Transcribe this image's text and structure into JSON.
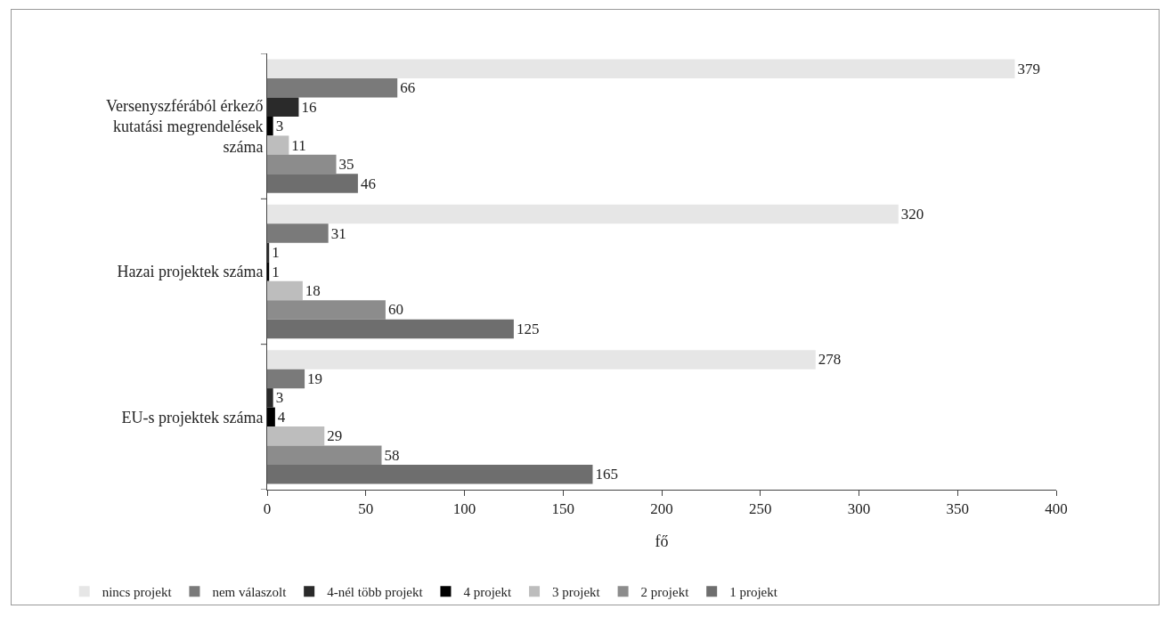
{
  "chart_data": {
    "type": "bar",
    "orientation": "horizontal",
    "xlabel": "fő",
    "categories": [
      "Versenyszférából érkező kutatási megrendelések száma",
      "Hazai projektek száma",
      "EU-s projektek száma"
    ],
    "series": [
      {
        "name": "nincs projekt",
        "color": "#e6e6e6",
        "values": [
          379,
          320,
          278
        ]
      },
      {
        "name": "nem válaszolt",
        "color": "#7a7a7a",
        "values": [
          66,
          31,
          19
        ]
      },
      {
        "name": "4-nél több projekt",
        "color": "#2a2a2a",
        "values": [
          16,
          1,
          3
        ]
      },
      {
        "name": "4 projekt",
        "color": "#000000",
        "values": [
          3,
          1,
          4
        ]
      },
      {
        "name": "3 projekt",
        "color": "#bdbdbd",
        "values": [
          11,
          18,
          29
        ]
      },
      {
        "name": "2 projekt",
        "color": "#8c8c8c",
        "values": [
          35,
          60,
          58
        ]
      },
      {
        "name": "1 projekt",
        "color": "#6e6e6e",
        "values": [
          46,
          125,
          165
        ]
      }
    ],
    "xlim": [
      0,
      400
    ],
    "xticks": [
      0,
      50,
      100,
      150,
      200,
      250,
      300,
      350,
      400
    ],
    "data_labels": true,
    "grid": false,
    "legend": "bottom"
  }
}
